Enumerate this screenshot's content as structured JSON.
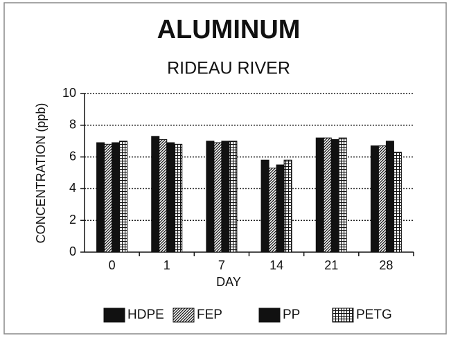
{
  "chart_data": {
    "type": "bar",
    "title": "ALUMINUM",
    "subtitle": "RIDEAU RIVER",
    "x_label": "DAY",
    "y_label": "CONCENTRATION (ppb)",
    "categories": [
      "0",
      "1",
      "7",
      "14",
      "21",
      "28"
    ],
    "series": [
      {
        "name": "HDPE",
        "color": "#111111",
        "pattern": "solid",
        "values": [
          6.9,
          7.3,
          7.0,
          5.8,
          7.2,
          6.7
        ]
      },
      {
        "name": "FEP",
        "color": "#111111",
        "pattern": "diagonal",
        "values": [
          6.8,
          7.1,
          6.9,
          5.3,
          7.2,
          6.7
        ]
      },
      {
        "name": "PP",
        "color": "#111111",
        "pattern": "solid",
        "values": [
          6.9,
          6.9,
          7.0,
          5.5,
          7.1,
          7.0
        ]
      },
      {
        "name": "PETG",
        "color": "#111111",
        "pattern": "grid",
        "values": [
          7.0,
          6.8,
          7.0,
          5.8,
          7.2,
          6.3
        ]
      }
    ],
    "ylim": [
      0,
      10
    ],
    "yticks": [
      0,
      2,
      4,
      6,
      8,
      10
    ],
    "grid": true,
    "legend": "bottom"
  }
}
